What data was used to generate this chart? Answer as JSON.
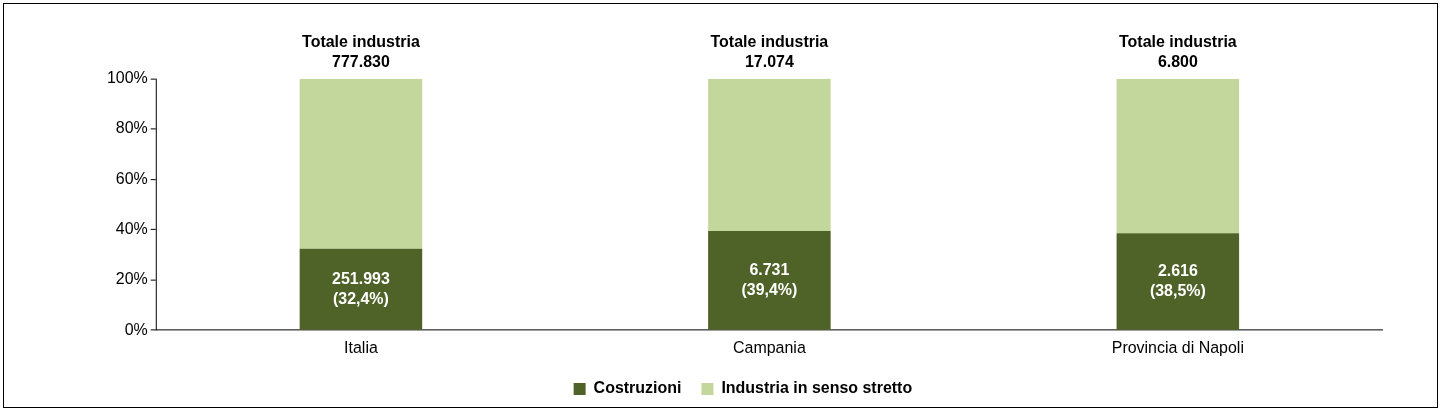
{
  "chart_data": {
    "type": "bar",
    "stacked": true,
    "categories": [
      "Italia",
      "Campania",
      "Provincia di Napoli"
    ],
    "series": [
      {
        "name": "Costruzioni",
        "color": "#4f6228",
        "values": [
          32.4,
          39.4,
          38.5
        ],
        "value_labels": [
          "251.993\n(32,4%)",
          "6.731\n(39,4%)",
          "2.616\n(38,5%)"
        ]
      },
      {
        "name": "Industria in senso stretto",
        "color": "#c3d69b",
        "values": [
          67.6,
          60.6,
          61.5
        ]
      }
    ],
    "totals": [
      "Totale industria\n777.830",
      "Totale industria\n17.074",
      "Totale industria\n6.800"
    ],
    "ylim": [
      0,
      100
    ],
    "yticks": [
      {
        "value": 0,
        "label": "0%"
      },
      {
        "value": 20,
        "label": "20%"
      },
      {
        "value": 40,
        "label": "40%"
      },
      {
        "value": 60,
        "label": "60%"
      },
      {
        "value": 80,
        "label": "80%"
      },
      {
        "value": 100,
        "label": "100%"
      }
    ],
    "grid": false,
    "legend": "bottom"
  }
}
